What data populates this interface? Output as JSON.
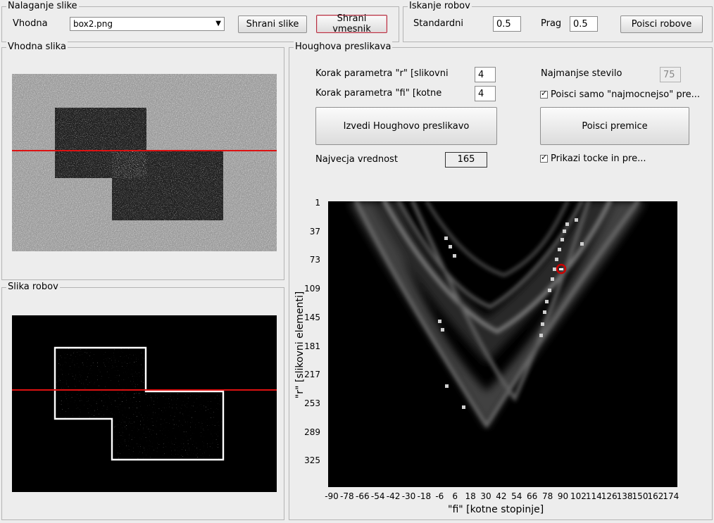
{
  "loading": {
    "title": "Nalaganje slike",
    "input_label": "Vhodna",
    "file_value": "box2.png",
    "save_images_label": "Shrani slike",
    "save_clipboard_label": "Shrani vmesnik"
  },
  "edge_search": {
    "title": "Iskanje robov",
    "std_label": "Standardni",
    "std_value": "0.5",
    "threshold_label": "Prag",
    "threshold_value": "0.5",
    "find_edges_label": "Poisci robove"
  },
  "input_image": {
    "title": "Vhodna slika"
  },
  "edge_image": {
    "title": "Slika robov"
  },
  "hough": {
    "title": "Houghova preslikava",
    "r_step_label": "Korak parametra \"r\" [slikovni",
    "r_step_value": "4",
    "fi_step_label": "Korak parametra \"fi\" [kotne",
    "fi_step_value": "4",
    "min_count_label": "Najmanjse stevilo",
    "min_count_value": "75",
    "strongest_only_label": "Poisci samo \"najmocnejso\" pre...",
    "run_label": "Izvedi Houghovo preslikavo",
    "find_lines_label": "Poisci premice",
    "max_value_label": "Najvecja vrednost",
    "max_value": "165",
    "show_points_label": "Prikazi tocke in pre..."
  },
  "accumulator": {
    "xlabel": "\"fi\"   [kotne stopinje]",
    "ylabel": "\"r\"   [slikovni elementi]",
    "x_ticks": [
      "-90",
      "-78",
      "-66",
      "-54",
      "-42",
      "-30",
      "-18",
      "-6",
      "6",
      "18",
      "30",
      "42",
      "54",
      "66",
      "78",
      "90",
      "102",
      "114",
      "126",
      "138",
      "150",
      "162",
      "174"
    ],
    "y_ticks": [
      "1",
      "37",
      "73",
      "109",
      "145",
      "181",
      "217",
      "253",
      "289",
      "325"
    ],
    "peak_marker_color": "#cc0000"
  },
  "colors": {
    "line_overlay": "#dd1111"
  }
}
